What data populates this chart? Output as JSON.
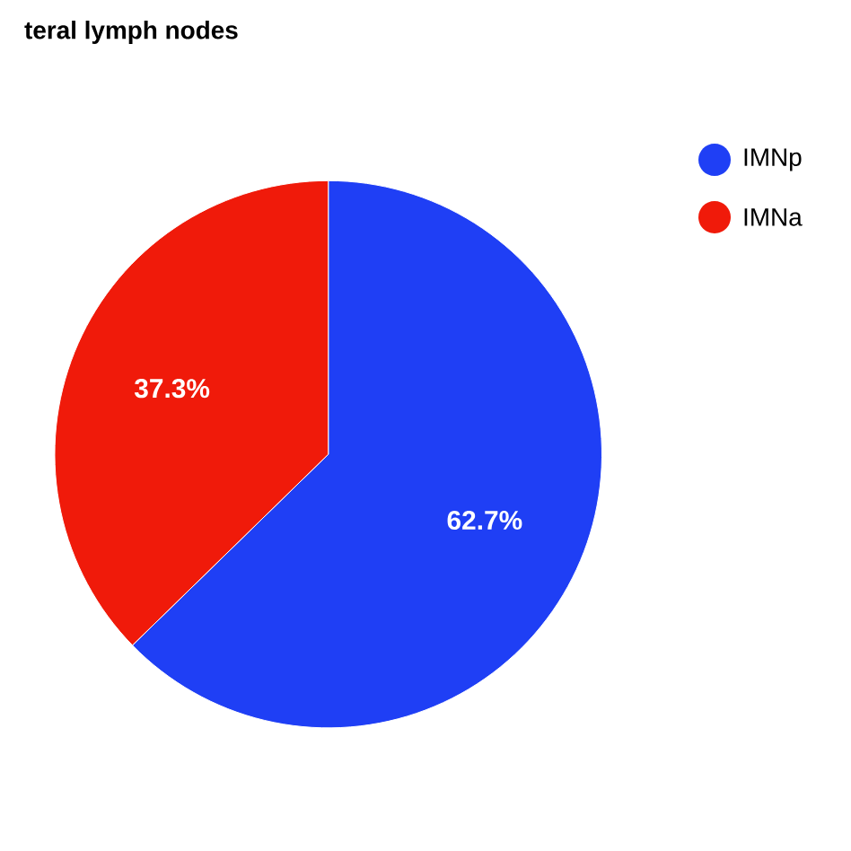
{
  "chart_data": {
    "type": "pie",
    "title": "teral lymph nodes",
    "categories": [
      "IMNp",
      "IMNa"
    ],
    "values": [
      62.7,
      37.3
    ],
    "value_labels": [
      "62.7%",
      "37.3%"
    ],
    "colors": [
      "#1f3ff5",
      "#f01a0a"
    ],
    "legend": "right"
  }
}
